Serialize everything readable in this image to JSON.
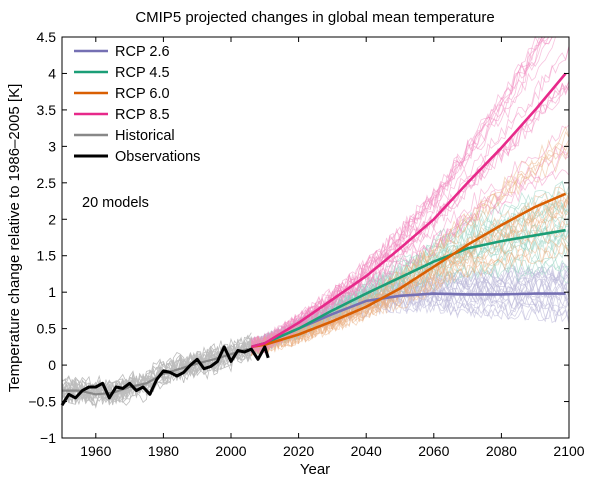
{
  "chart_data": {
    "type": "line",
    "title": "CMIP5 projected changes in global mean temperature",
    "xlabel": "Year",
    "ylabel": "Temperature change relative to 1986–2005 [K]",
    "xlim": [
      1950,
      2100
    ],
    "ylim": [
      -1,
      4.5
    ],
    "xticks": [
      1960,
      1980,
      2000,
      2020,
      2040,
      2060,
      2080,
      2100
    ],
    "yticks": [
      -1,
      -0.5,
      0,
      0.5,
      1,
      1.5,
      2,
      2.5,
      3,
      3.5,
      4,
      4.5
    ],
    "ytick_labels": [
      "−1",
      "−0.5",
      "0",
      "0.5",
      "1",
      "1.5",
      "2",
      "2.5",
      "3",
      "3.5",
      "4",
      "4.5"
    ],
    "grid": false,
    "legend_position": "top-left",
    "annotation": "20 models",
    "series": [
      {
        "name": "RCP 2.6",
        "color": "#7570b3",
        "x": [
          2006,
          2010,
          2020,
          2030,
          2040,
          2050,
          2060,
          2070,
          2080,
          2090,
          2099
        ],
        "y": [
          0.25,
          0.3,
          0.5,
          0.7,
          0.88,
          0.95,
          0.98,
          0.97,
          0.97,
          0.98,
          0.98
        ]
      },
      {
        "name": "RCP 4.5",
        "color": "#1b9e77",
        "x": [
          2006,
          2010,
          2020,
          2030,
          2040,
          2050,
          2060,
          2070,
          2080,
          2090,
          2099
        ],
        "y": [
          0.25,
          0.3,
          0.5,
          0.75,
          0.98,
          1.2,
          1.42,
          1.6,
          1.7,
          1.78,
          1.85
        ]
      },
      {
        "name": "RCP 6.0",
        "color": "#d95f02",
        "x": [
          2006,
          2010,
          2020,
          2030,
          2040,
          2050,
          2060,
          2070,
          2080,
          2090,
          2099
        ],
        "y": [
          0.25,
          0.28,
          0.42,
          0.6,
          0.8,
          1.05,
          1.35,
          1.65,
          1.92,
          2.17,
          2.35
        ]
      },
      {
        "name": "RCP 8.5",
        "color": "#e7298a",
        "x": [
          2006,
          2010,
          2020,
          2030,
          2040,
          2050,
          2060,
          2070,
          2080,
          2090,
          2099
        ],
        "y": [
          0.25,
          0.3,
          0.58,
          0.9,
          1.22,
          1.6,
          2.0,
          2.5,
          2.98,
          3.5,
          4.0
        ]
      },
      {
        "name": "Historical",
        "color": "#888888",
        "x": [
          1950,
          1955,
          1960,
          1965,
          1970,
          1975,
          1980,
          1985,
          1990,
          1995,
          2000,
          2005
        ],
        "y": [
          -0.35,
          -0.35,
          -0.4,
          -0.38,
          -0.3,
          -0.25,
          -0.12,
          -0.05,
          0.02,
          0.08,
          0.15,
          0.22
        ]
      },
      {
        "name": "Observations",
        "color": "#000000",
        "x": [
          1950,
          1952,
          1954,
          1956,
          1958,
          1960,
          1962,
          1964,
          1966,
          1968,
          1970,
          1972,
          1974,
          1976,
          1978,
          1980,
          1982,
          1984,
          1986,
          1988,
          1990,
          1992,
          1994,
          1996,
          1998,
          2000,
          2002,
          2004,
          2006,
          2008,
          2010,
          2011
        ],
        "y": [
          -0.55,
          -0.4,
          -0.45,
          -0.35,
          -0.3,
          -0.3,
          -0.25,
          -0.45,
          -0.3,
          -0.32,
          -0.25,
          -0.35,
          -0.3,
          -0.4,
          -0.2,
          -0.08,
          -0.1,
          -0.15,
          -0.1,
          0.0,
          0.08,
          -0.05,
          -0.02,
          0.05,
          0.25,
          0.05,
          0.2,
          0.18,
          0.22,
          0.08,
          0.25,
          0.1
        ]
      }
    ]
  }
}
